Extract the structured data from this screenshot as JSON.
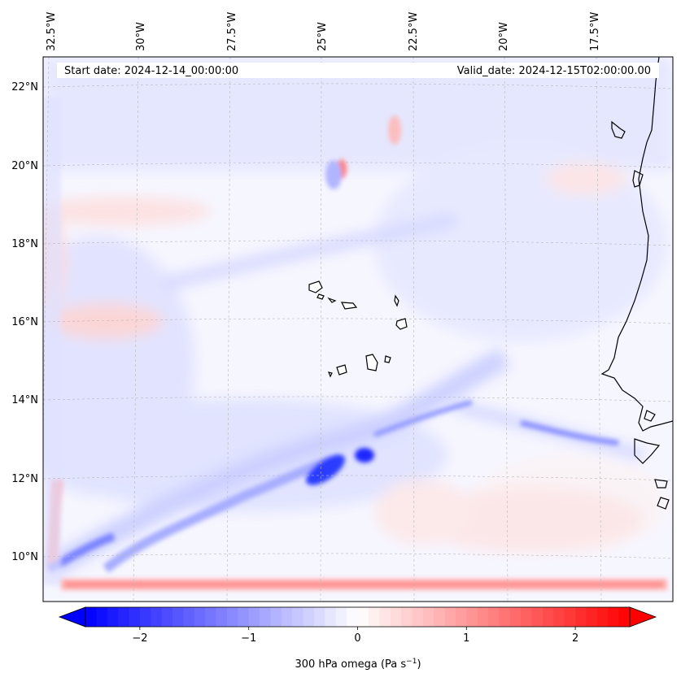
{
  "map": {
    "info_start": "Start date: 2024-12-14_00:00:00",
    "info_valid": "Valid_date: 2024-12-15T02:00:00.00",
    "lon_ticks": [
      "32.5°W",
      "30°W",
      "27.5°W",
      "25°W",
      "22.5°W",
      "20°W",
      "17.5°W"
    ],
    "lat_ticks": [
      "22°N",
      "20°N",
      "18°N",
      "16°N",
      "14°N",
      "12°N",
      "10°N"
    ],
    "lon_values": [
      -32.5,
      -30,
      -27.5,
      -25,
      -22.5,
      -20,
      -17.5
    ],
    "lat_values": [
      22,
      20,
      18,
      16,
      14,
      12,
      10
    ],
    "colors": {
      "negative": "#0000ff",
      "zero": "#ffffff",
      "positive": "#ff0000",
      "coast": "#000000",
      "grid": "#b0b0b0"
    }
  },
  "colorbar": {
    "label_prefix": "300 hPa omega (Pa s",
    "label_exp": "−1",
    "label_suffix": ")",
    "tick_labels": [
      "−2",
      "−1",
      "0",
      "1",
      "2"
    ],
    "tick_values": [
      -2,
      -1,
      0,
      1,
      2
    ],
    "min": -2.5,
    "max": 2.5,
    "levels": 50
  }
}
